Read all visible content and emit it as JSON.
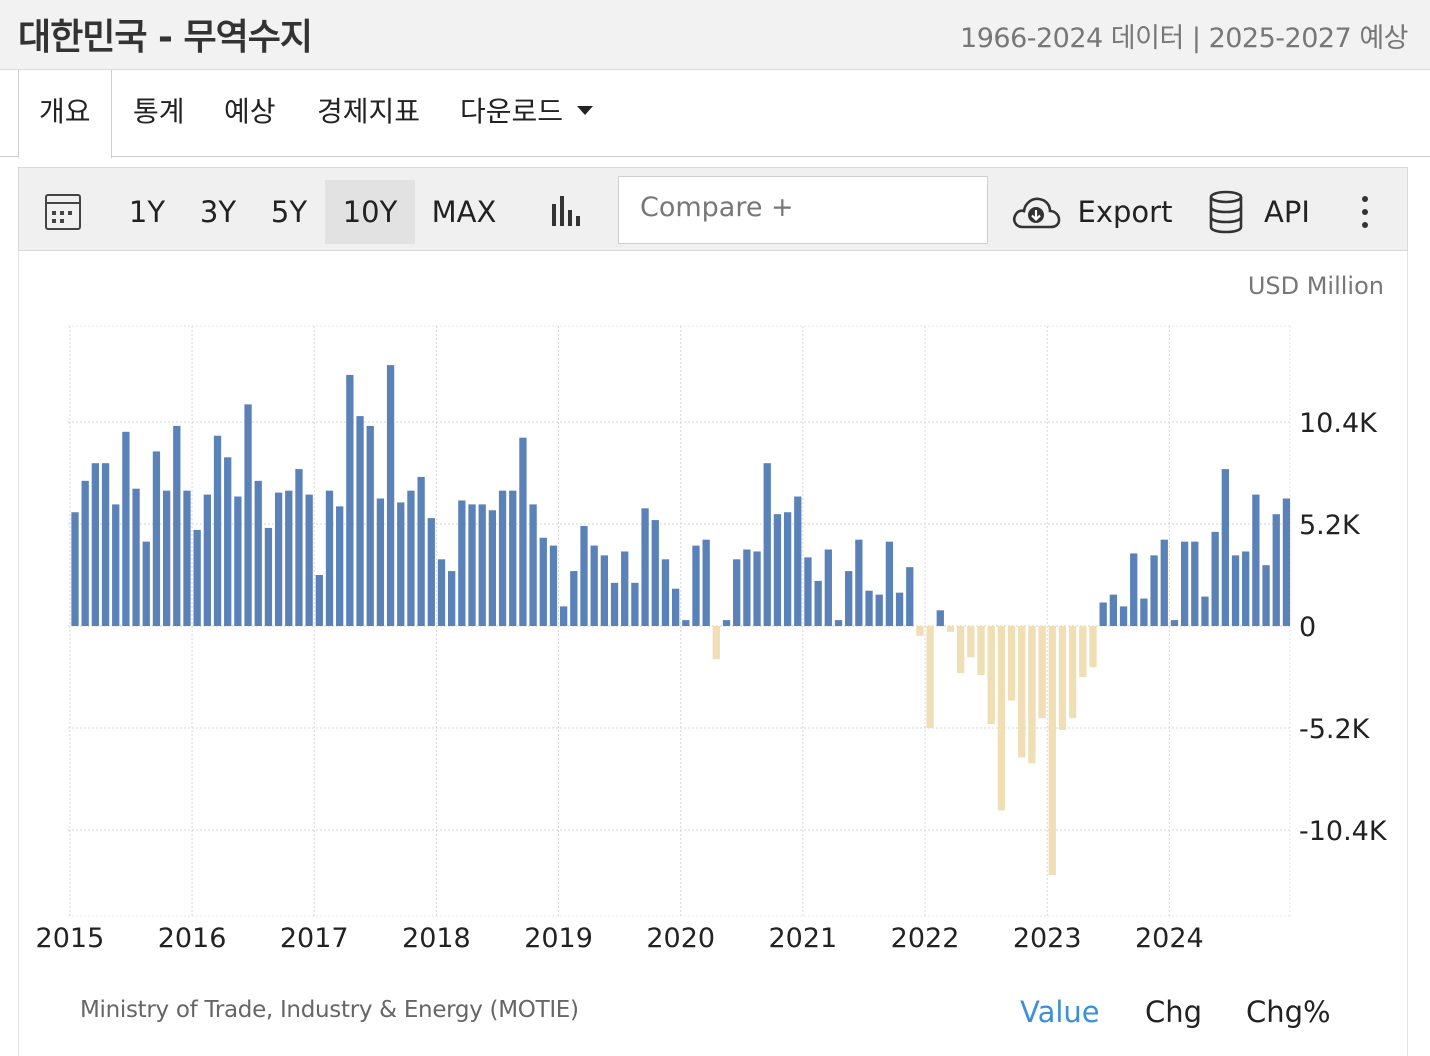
{
  "header": {
    "title": "대한민국 - 무역수지",
    "subtitle": "1966-2024 데이터 | 2025-2027 예상"
  },
  "tabs": [
    {
      "label": "개요",
      "active": true
    },
    {
      "label": "통계"
    },
    {
      "label": "예상"
    },
    {
      "label": "경제지표"
    },
    {
      "label": "다운로드"
    }
  ],
  "toolbar": {
    "calendar_icon": "calendar-icon",
    "ranges": [
      "1Y",
      "3Y",
      "5Y",
      "10Y",
      "MAX"
    ],
    "active_range": "10Y",
    "chart_type_icon": "bar-chart-icon",
    "compare_placeholder": "Compare +",
    "export_label": "Export",
    "export_icon": "cloud-download-icon",
    "api_label": "API",
    "api_icon": "database-icon",
    "more_icon": "more-vertical-icon"
  },
  "footer": {
    "source": "Ministry of Trade, Industry & Energy (MOTIE)",
    "value_tabs": [
      "Value",
      "Chg",
      "Chg%"
    ],
    "active_value_tab": "Value",
    "active_color": "#3d8fd9"
  },
  "chart_data": {
    "type": "bar",
    "unit_label": "USD Million",
    "x_start": "2015-01",
    "frequency": "monthly",
    "x_tick_labels": [
      "2015",
      "2016",
      "2017",
      "2018",
      "2019",
      "2020",
      "2021",
      "2022",
      "2023",
      "2024"
    ],
    "y_tick_values": [
      -10400,
      -5200,
      0,
      5200,
      10400
    ],
    "y_tick_labels": [
      "-10.4K",
      "-5.2K",
      "0",
      "5.2K",
      "10.4K"
    ],
    "ylim": [
      -14700,
      15400
    ],
    "grid": true,
    "positive_color": "#5b82b8",
    "negative_color": "#f0deb4",
    "values": [
      5800,
      7400,
      8300,
      8300,
      6200,
      9900,
      7000,
      4300,
      8900,
      6900,
      10200,
      6900,
      4900,
      6700,
      9700,
      8600,
      6600,
      11300,
      7400,
      5000,
      6800,
      6900,
      8000,
      6700,
      2600,
      6900,
      6100,
      12800,
      10700,
      10200,
      6500,
      13300,
      6300,
      6900,
      7600,
      5500,
      3400,
      2800,
      6400,
      6200,
      6200,
      5900,
      6900,
      6900,
      9600,
      6200,
      4500,
      4100,
      1000,
      2800,
      5100,
      4100,
      3600,
      2200,
      3800,
      2200,
      6000,
      5400,
      3400,
      1900,
      300,
      4100,
      4400,
      -1700,
      300,
      3400,
      3900,
      3800,
      8300,
      5700,
      5800,
      6600,
      3500,
      2300,
      3900,
      300,
      2800,
      4400,
      1800,
      1600,
      4300,
      1700,
      3000,
      -500,
      -5200,
      800,
      -300,
      -2400,
      -1600,
      -2500,
      -5000,
      -9400,
      -3800,
      -6700,
      -7000,
      -4700,
      -12700,
      -5300,
      -4700,
      -2600,
      -2100,
      1200,
      1600,
      1000,
      3700,
      1400,
      3600,
      4400,
      300,
      4300,
      4300,
      1500,
      4800,
      8000,
      3600,
      3800,
      6700,
      3100,
      5700,
      6500
    ]
  }
}
